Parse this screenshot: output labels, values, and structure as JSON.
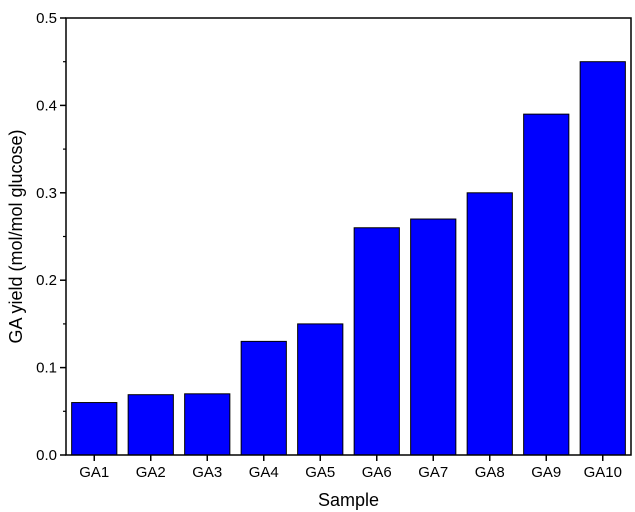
{
  "chart_data": {
    "type": "bar",
    "title": "",
    "xlabel": "Sample",
    "ylabel": "GA yield (mol/mol glucose)",
    "categories": [
      "GA1",
      "GA2",
      "GA3",
      "GA4",
      "GA5",
      "GA6",
      "GA7",
      "GA8",
      "GA9",
      "GA10"
    ],
    "values": [
      0.06,
      0.069,
      0.07,
      0.13,
      0.15,
      0.26,
      0.27,
      0.3,
      0.39,
      0.45
    ],
    "ylim": [
      0,
      0.5
    ],
    "yticks": [
      "0.0",
      "0.1",
      "0.2",
      "0.3",
      "0.4",
      "0.5"
    ],
    "grid": false,
    "legend": "none",
    "bar_color": "#0000FF",
    "bar_edge_color": "#000000"
  }
}
